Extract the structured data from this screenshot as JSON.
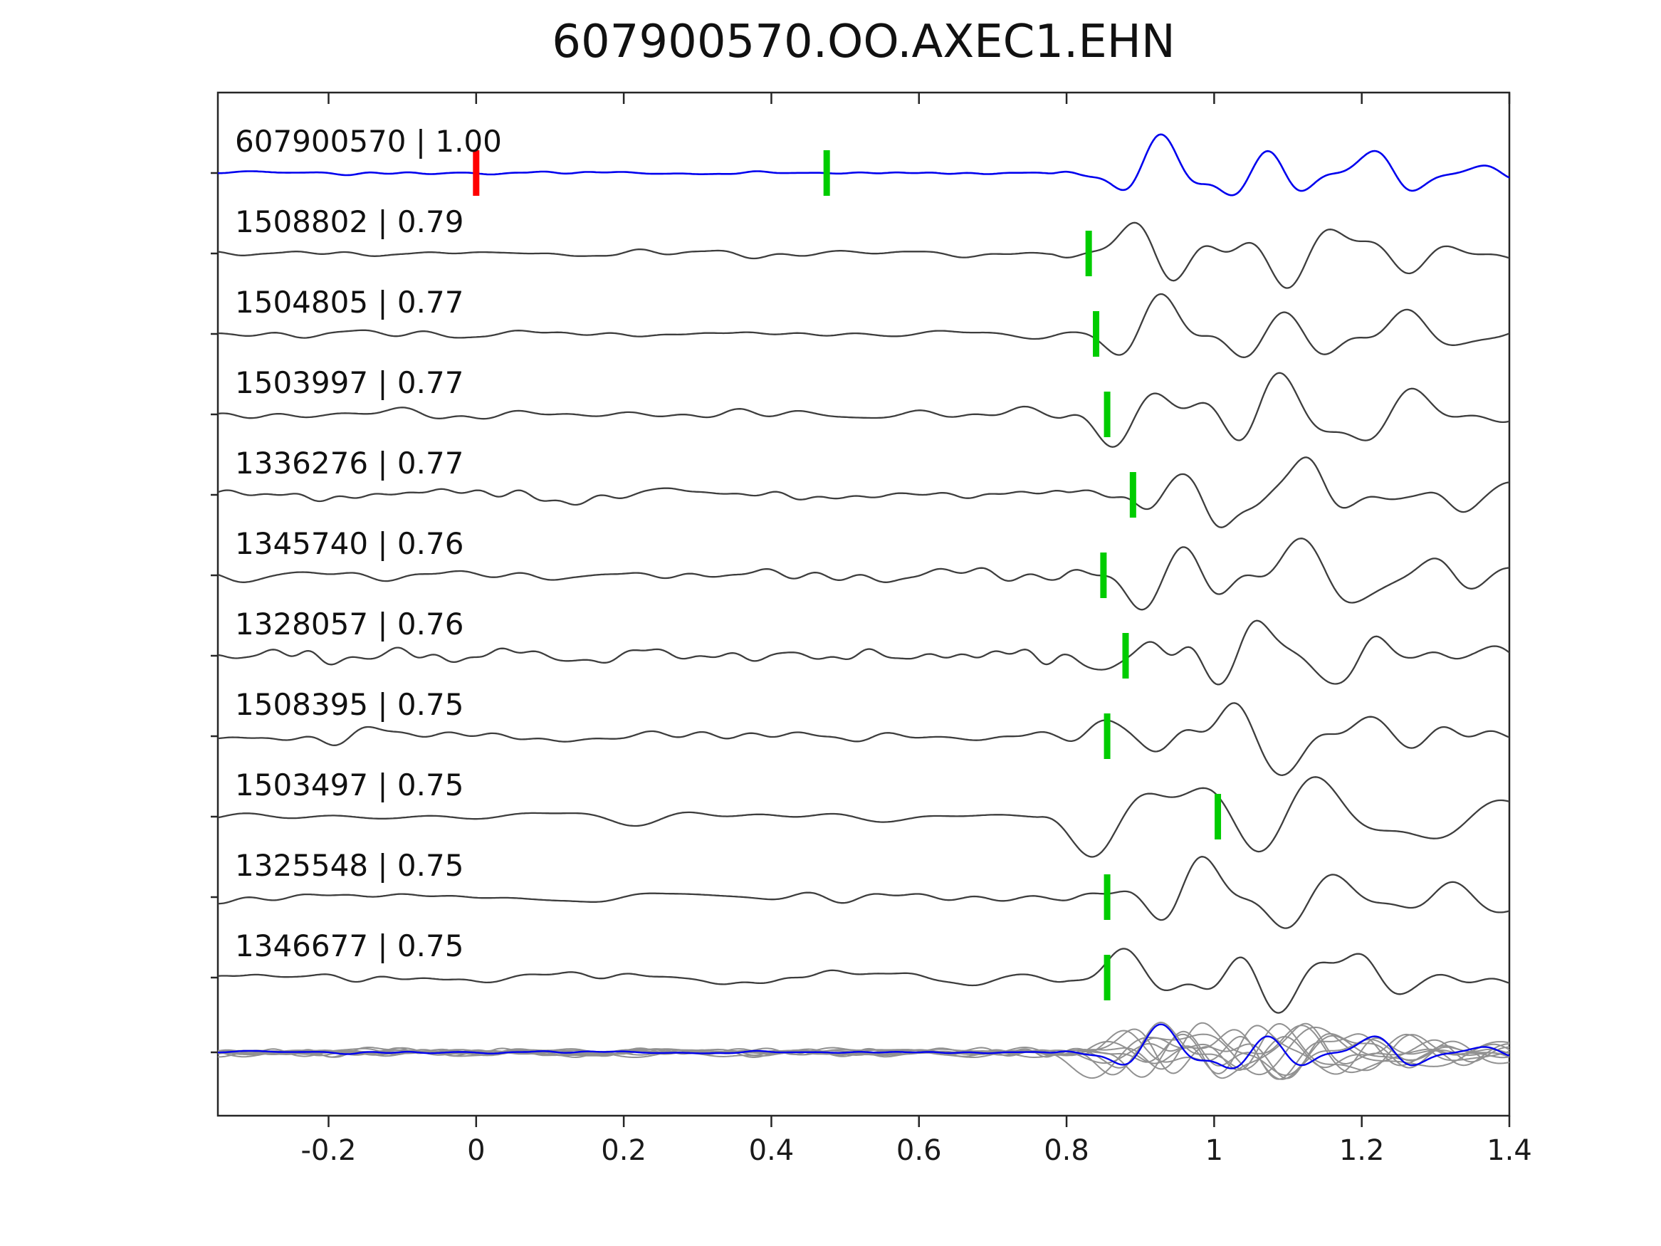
{
  "title": "607900570.OO.AXEC1.EHN",
  "chart_data": {
    "type": "line",
    "title": "607900570.OO.AXEC1.EHN",
    "description": "Template waveform (blue, top) compared against 10 matched event waveforms (gray) with cross-correlation scores; green bars mark picks, red bar marks time zero; bottom row overlays all waveforms.",
    "xlim": [
      -0.35,
      1.4
    ],
    "grid": false,
    "legend": "none",
    "x_ticks": [
      {
        "value": -0.2,
        "label": "-0.2"
      },
      {
        "value": 0,
        "label": "0"
      },
      {
        "value": 0.2,
        "label": "0.2"
      },
      {
        "value": 0.4,
        "label": "0.4"
      },
      {
        "value": 0.6,
        "label": "0.6"
      },
      {
        "value": 0.8,
        "label": "0.8"
      },
      {
        "value": 1,
        "label": "1"
      },
      {
        "value": 1.2,
        "label": "1.2"
      },
      {
        "value": 1.4,
        "label": "1.4"
      }
    ],
    "traces": [
      {
        "id": "607900570",
        "correlation": 1.0,
        "label": "607900570 | 1.00",
        "role": "template",
        "red_marker_x": 0.0,
        "pick_x": 0.475,
        "onset_x": 0.78
      },
      {
        "id": "1508802",
        "correlation": 0.79,
        "label": "1508802 | 0.79",
        "role": "match",
        "pick_x": 0.83,
        "onset_x": 0.78
      },
      {
        "id": "1504805",
        "correlation": 0.77,
        "label": "1504805 | 0.77",
        "role": "match",
        "pick_x": 0.84,
        "onset_x": 0.79
      },
      {
        "id": "1503997",
        "correlation": 0.77,
        "label": "1503997 | 0.77",
        "role": "match",
        "pick_x": 0.855,
        "onset_x": 0.79
      },
      {
        "id": "1336276",
        "correlation": 0.77,
        "label": "1336276 | 0.77",
        "role": "match",
        "pick_x": 0.89,
        "onset_x": 0.8
      },
      {
        "id": "1345740",
        "correlation": 0.76,
        "label": "1345740 | 0.76",
        "role": "match",
        "pick_x": 0.85,
        "onset_x": 0.79
      },
      {
        "id": "1328057",
        "correlation": 0.76,
        "label": "1328057 | 0.76",
        "role": "match",
        "pick_x": 0.88,
        "onset_x": 0.8
      },
      {
        "id": "1508395",
        "correlation": 0.75,
        "label": "1508395 | 0.75",
        "role": "match",
        "pick_x": 0.855,
        "onset_x": 0.79
      },
      {
        "id": "1503497",
        "correlation": 0.75,
        "label": "1503497 | 0.75",
        "role": "match",
        "pick_x": 1.005,
        "onset_x": 0.76
      },
      {
        "id": "1325548",
        "correlation": 0.75,
        "label": "1325548 | 0.75",
        "role": "match",
        "pick_x": 0.855,
        "onset_x": 0.79
      },
      {
        "id": "1346677",
        "correlation": 0.75,
        "label": "1346677 | 0.75",
        "role": "match",
        "pick_x": 0.855,
        "onset_x": 0.8
      }
    ],
    "overlay_row": {
      "description": "All matched waveforms overlaid (gray) with template waveform (blue)"
    },
    "colors": {
      "template": "#0000ee",
      "match": "#3d3d3d",
      "pick_marker": "#00cc00",
      "origin_marker": "#ff0000",
      "overlay": "#919191",
      "axis": "#262626",
      "text": "#111111",
      "background": "#ffffff"
    }
  }
}
